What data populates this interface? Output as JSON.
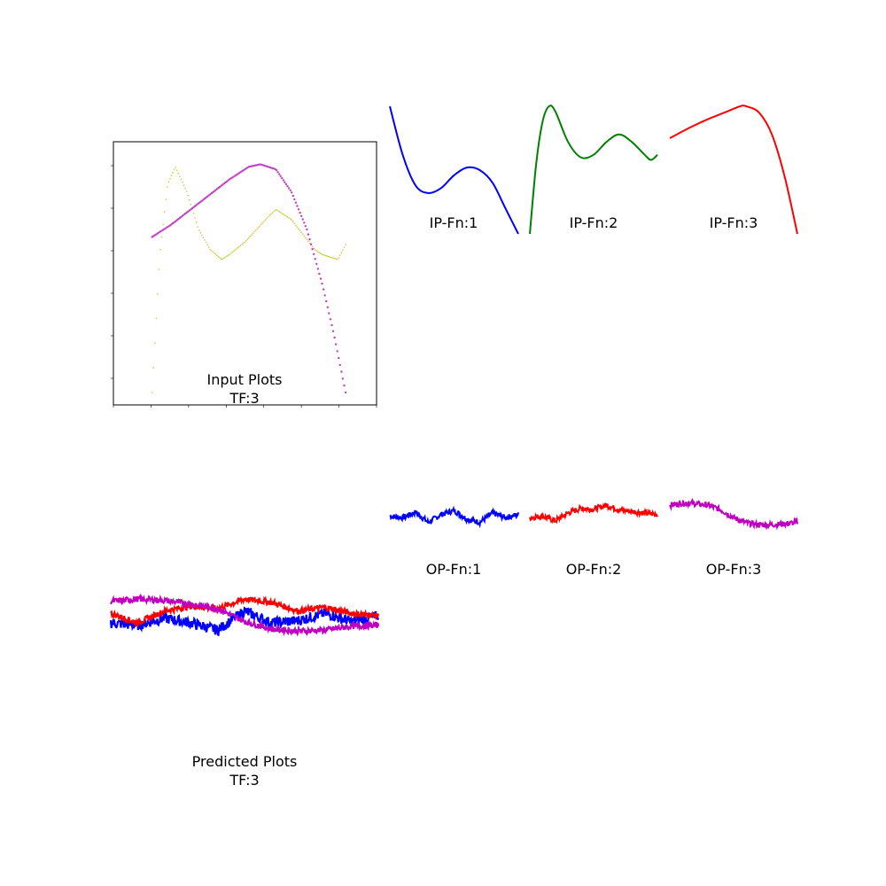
{
  "figure": {
    "input_title": [
      "Input Plots",
      "TF:3"
    ],
    "predicted_title": [
      "Predicted Plots",
      "TF:3"
    ],
    "ip_captions": [
      "IP-Fn:1",
      "IP-Fn:2",
      "IP-Fn:3"
    ],
    "op_captions": [
      "OP-Fn:1",
      "OP-Fn:2",
      "OP-Fn:3"
    ]
  },
  "chart_data": [
    {
      "type": "scatter",
      "role": "input-overlay",
      "xlim": [
        -0.5,
        2.9
      ],
      "ylim": [
        0.0,
        1.05
      ],
      "series": [
        {
          "color": "#c8c832",
          "x": [
            0.0,
            0.1,
            0.2,
            0.3,
            0.45,
            0.6,
            0.75,
            0.9,
            1.0,
            1.2,
            1.35,
            1.5,
            1.6,
            1.8,
            1.95,
            2.1,
            2.2,
            2.4,
            2.5
          ],
          "y": [
            0.05,
            0.6,
            0.88,
            0.95,
            0.85,
            0.7,
            0.62,
            0.58,
            0.6,
            0.65,
            0.7,
            0.75,
            0.78,
            0.74,
            0.68,
            0.62,
            0.6,
            0.58,
            0.64
          ]
        },
        {
          "color": "#c040c0",
          "x": [
            0.0,
            0.25,
            0.5,
            0.75,
            1.0,
            1.25,
            1.4,
            1.6,
            1.8,
            2.0,
            2.2,
            2.35,
            2.5
          ],
          "y": [
            0.67,
            0.72,
            0.78,
            0.84,
            0.9,
            0.95,
            0.96,
            0.94,
            0.85,
            0.7,
            0.48,
            0.28,
            0.05
          ]
        }
      ]
    },
    {
      "type": "line",
      "title": "IP-Fn:1",
      "color": "#0000ff",
      "x": [
        0,
        0.1,
        0.2,
        0.3,
        0.4,
        0.5,
        0.6,
        0.7,
        0.8,
        0.9,
        1.0
      ],
      "y": [
        1.0,
        0.62,
        0.38,
        0.32,
        0.36,
        0.46,
        0.52,
        0.5,
        0.4,
        0.2,
        0.0
      ]
    },
    {
      "type": "line",
      "title": "IP-Fn:2",
      "color": "#008000",
      "x": [
        0,
        0.05,
        0.1,
        0.15,
        0.2,
        0.3,
        0.4,
        0.5,
        0.6,
        0.7,
        0.8,
        0.9,
        0.95,
        1.0
      ],
      "y": [
        0.0,
        0.55,
        0.88,
        1.0,
        0.96,
        0.72,
        0.6,
        0.62,
        0.72,
        0.78,
        0.72,
        0.62,
        0.58,
        0.62
      ]
    },
    {
      "type": "line",
      "title": "IP-Fn:3",
      "color": "#ff0000",
      "x": [
        0,
        0.15,
        0.3,
        0.45,
        0.55,
        0.6,
        0.7,
        0.8,
        0.9,
        1.0
      ],
      "y": [
        0.75,
        0.83,
        0.9,
        0.96,
        1.0,
        1.0,
        0.95,
        0.78,
        0.45,
        0.0
      ]
    },
    {
      "type": "line",
      "title": "OP-Fn:1",
      "color": "#0000ff",
      "x": [
        0,
        0.1,
        0.2,
        0.3,
        0.4,
        0.5,
        0.6,
        0.7,
        0.8,
        0.9,
        1.0
      ],
      "y": [
        0.5,
        0.45,
        0.62,
        0.3,
        0.55,
        0.68,
        0.4,
        0.3,
        0.6,
        0.45,
        0.55
      ]
    },
    {
      "type": "line",
      "title": "OP-Fn:2",
      "color": "#ff0000",
      "x": [
        0,
        0.1,
        0.2,
        0.3,
        0.4,
        0.5,
        0.6,
        0.7,
        0.8,
        0.9,
        1.0
      ],
      "y": [
        0.45,
        0.5,
        0.35,
        0.6,
        0.75,
        0.72,
        0.85,
        0.7,
        0.65,
        0.6,
        0.55
      ]
    },
    {
      "type": "line",
      "title": "OP-Fn:3",
      "color": "#c000c0",
      "x": [
        0,
        0.1,
        0.2,
        0.3,
        0.4,
        0.5,
        0.6,
        0.7,
        0.8,
        0.9,
        1.0
      ],
      "y": [
        0.85,
        0.92,
        0.9,
        0.85,
        0.7,
        0.45,
        0.28,
        0.22,
        0.22,
        0.25,
        0.3
      ]
    },
    {
      "type": "line",
      "role": "predicted-overlay",
      "x": [
        0,
        0.1,
        0.2,
        0.3,
        0.4,
        0.5,
        0.6,
        0.7,
        0.8,
        0.9,
        1.0
      ],
      "series": [
        {
          "color": "#0000ff",
          "y": [
            0.35,
            0.3,
            0.45,
            0.35,
            0.2,
            0.6,
            0.35,
            0.4,
            0.55,
            0.38,
            0.5
          ]
        },
        {
          "color": "#ff0000",
          "y": [
            0.55,
            0.35,
            0.6,
            0.7,
            0.65,
            0.85,
            0.78,
            0.6,
            0.68,
            0.55,
            0.5
          ]
        },
        {
          "color": "#c000c0",
          "y": [
            0.8,
            0.85,
            0.82,
            0.75,
            0.65,
            0.38,
            0.22,
            0.18,
            0.2,
            0.28,
            0.3
          ]
        }
      ]
    }
  ]
}
